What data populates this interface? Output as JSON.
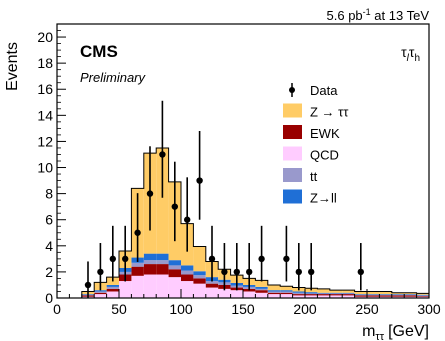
{
  "chart_data": {
    "type": "bar",
    "stacked": true,
    "histogram": true,
    "bin_edges": [
      10,
      20,
      30,
      40,
      50,
      60,
      70,
      80,
      90,
      100,
      110,
      120,
      130,
      140,
      150,
      160,
      170,
      180,
      190,
      200,
      210,
      220,
      230,
      240,
      250,
      260,
      270,
      280,
      290,
      300
    ],
    "series": [
      {
        "name": "QCD",
        "color": "#ffccff",
        "values": [
          0,
          0.1,
          0.3,
          0.5,
          1.3,
          1.7,
          1.8,
          1.8,
          1.6,
          1.3,
          1.1,
          0.8,
          0.7,
          0.6,
          0.5,
          0.4,
          0.3,
          0.3,
          0.2,
          0.2,
          0.2,
          0.2,
          0.2,
          0.1,
          0.1,
          0.1,
          0.1,
          0.1,
          0.1
        ]
      },
      {
        "name": "EWK",
        "color": "#990000",
        "values": [
          0,
          0.1,
          0.1,
          0.2,
          0.5,
          0.7,
          0.8,
          0.8,
          0.6,
          0.5,
          0.4,
          0.3,
          0.3,
          0.2,
          0.2,
          0.2,
          0.1,
          0.1,
          0.1,
          0.1,
          0.1,
          0.1,
          0.1,
          0.1,
          0.1,
          0.1,
          0.1,
          0.1,
          0.05
        ]
      },
      {
        "name": "tt",
        "color": "#9999cc",
        "values": [
          0,
          0.05,
          0.1,
          0.15,
          0.2,
          0.3,
          0.3,
          0.3,
          0.3,
          0.3,
          0.25,
          0.2,
          0.2,
          0.15,
          0.15,
          0.1,
          0.1,
          0.1,
          0.1,
          0.05,
          0.05,
          0.05,
          0.05,
          0.05,
          0.05,
          0.05,
          0.05,
          0.05,
          0.05
        ]
      },
      {
        "name": "Z→ll",
        "color": "#1f6fd6",
        "values": [
          0,
          0.05,
          0.1,
          0.15,
          0.3,
          0.4,
          0.5,
          0.5,
          0.4,
          0.4,
          0.3,
          0.3,
          0.2,
          0.2,
          0.15,
          0.15,
          0.1,
          0.1,
          0.1,
          0.1,
          0.05,
          0.05,
          0.05,
          0.05,
          0.05,
          0.05,
          0.05,
          0.05,
          0.05
        ]
      },
      {
        "name": "Z → ττ",
        "color": "#ffcc66",
        "values": [
          0,
          0.2,
          0.6,
          0.6,
          1.3,
          5.3,
          7.7,
          8.1,
          6.0,
          3.2,
          1.9,
          1.2,
          0.8,
          0.6,
          0.5,
          0.5,
          0.4,
          0.3,
          0.3,
          0.3,
          0.3,
          0.2,
          0.2,
          0.2,
          0.2,
          0.2,
          0.1,
          0.1,
          0.1
        ]
      }
    ],
    "data_points": {
      "name": "Data",
      "x": [
        25,
        35,
        45,
        55,
        65,
        75,
        85,
        95,
        105,
        115,
        125,
        135,
        145,
        155,
        165,
        185,
        195,
        205,
        245
      ],
      "y": [
        1,
        2,
        3,
        3,
        5,
        8,
        11,
        7,
        6,
        9,
        3,
        2,
        2,
        2,
        3,
        3,
        2,
        2,
        2
      ]
    },
    "xlim": [
      0,
      300
    ],
    "ylim": [
      0,
      21
    ],
    "x_ticks": [
      0,
      50,
      100,
      150,
      200,
      250,
      300
    ],
    "y_ticks": [
      0,
      2,
      4,
      6,
      8,
      10,
      12,
      14,
      16,
      18,
      20
    ],
    "xlabel": "m",
    "xlabel_sub": "ττ",
    "xlabel_unit": "[GeV]",
    "ylabel": "Events",
    "legend": [
      {
        "label": "Data",
        "kind": "marker"
      },
      {
        "label": "Z → ττ",
        "kind": "box",
        "color": "#ffcc66"
      },
      {
        "label": "EWK",
        "kind": "box",
        "color": "#990000"
      },
      {
        "label": "QCD",
        "kind": "box",
        "color": "#ffccff"
      },
      {
        "label": "tt",
        "kind": "box",
        "color": "#9999cc"
      },
      {
        "label": "Z→ll",
        "kind": "box",
        "color": "#1f6fd6"
      }
    ],
    "legend_position": "top-right"
  },
  "labels": {
    "lumi_value": "5.6 pb",
    "lumi_exp": "-1",
    "lumi_rest": " at 13 TeV",
    "experiment": "CMS",
    "status": "Preliminary",
    "channel_a": "τ",
    "channel_a_sub": "l",
    "channel_b": "τ",
    "channel_b_sub": "h"
  }
}
